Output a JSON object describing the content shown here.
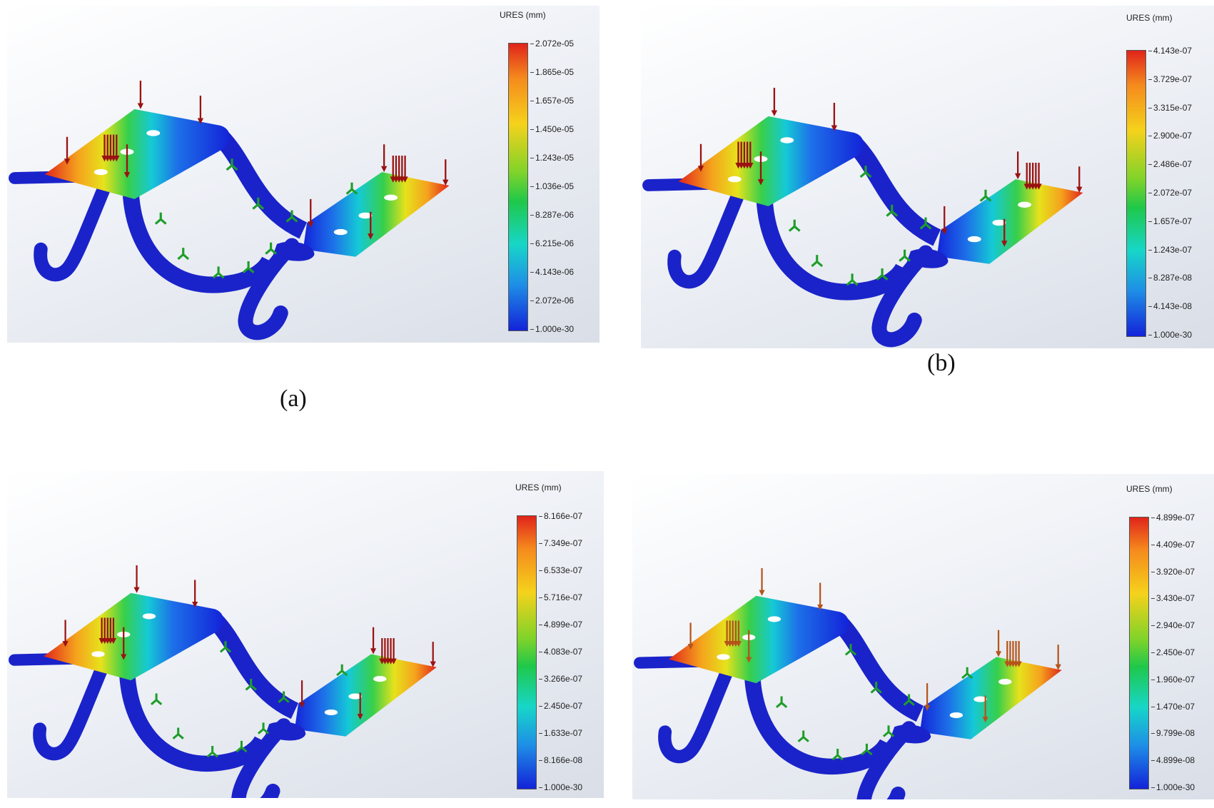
{
  "panels": [
    {
      "legend_title": "URES (mm)",
      "ticks": [
        "2.072e-05",
        "1.865e-05",
        "1.657e-05",
        "1.450e-05",
        "1.243e-05",
        "1.036e-05",
        "8.287e-06",
        "6.215e-06",
        "4.143e-06",
        "2.072e-06",
        "1.000e-30"
      ],
      "caption": "(a)",
      "arrow_color": "#9b1212"
    },
    {
      "legend_title": "URES (mm)",
      "ticks": [
        "4.143e-07",
        "3.729e-07",
        "3.315e-07",
        "2.900e-07",
        "2.486e-07",
        "2.072e-07",
        "1.657e-07",
        "1.243e-07",
        "8.287e-08",
        "4.143e-08",
        "1.000e-30"
      ],
      "caption": "(b)",
      "arrow_color": "#9b1212"
    },
    {
      "legend_title": "URES (mm)",
      "ticks": [
        "8.166e-07",
        "7.349e-07",
        "6.533e-07",
        "5.716e-07",
        "4.899e-07",
        "4.083e-07",
        "3.266e-07",
        "2.450e-07",
        "1.633e-07",
        "8.166e-08",
        "1.000e-30"
      ],
      "caption": "",
      "arrow_color": "#9b1212"
    },
    {
      "legend_title": "URES (mm)",
      "ticks": [
        "4.899e-07",
        "4.409e-07",
        "3.920e-07",
        "3.430e-07",
        "2.940e-07",
        "2.450e-07",
        "1.960e-07",
        "1.470e-07",
        "9.799e-08",
        "4.899e-08",
        "1.000e-30"
      ],
      "caption": "",
      "arrow_color": "#b5541b"
    }
  ]
}
